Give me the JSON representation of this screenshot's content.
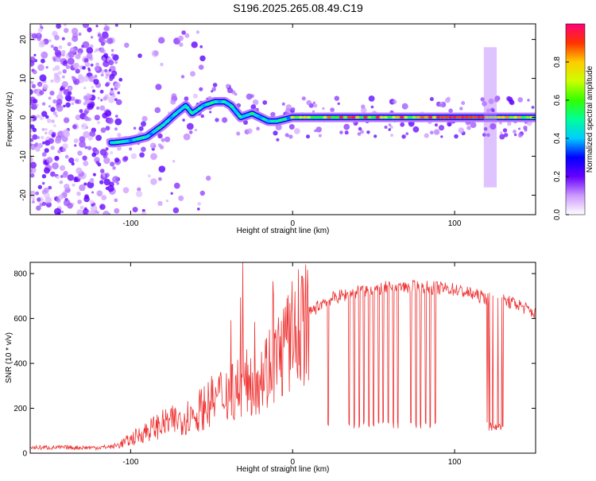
{
  "title": "S196.2025.265.08.49.C19",
  "chart_data": [
    {
      "type": "heatmap",
      "xlabel": "Height of straight line (km)",
      "ylabel": "Frequency (Hz)",
      "xlim": [
        -162,
        150
      ],
      "ylim": [
        -25,
        24
      ],
      "xticks": [
        -100,
        0,
        100
      ],
      "yticks": [
        -20,
        -10,
        0,
        10,
        20
      ],
      "ridge": {
        "x": [
          -110,
          -100,
          -90,
          -80,
          -72,
          -66,
          -62,
          -55,
          -48,
          -42,
          -38,
          -32,
          -25,
          -20,
          -15,
          -10,
          -5,
          0,
          10,
          50,
          100,
          118,
          125,
          130,
          150
        ],
        "y": [
          -6.5,
          -6,
          -5,
          -2,
          1,
          3,
          1,
          3,
          4,
          4,
          3,
          0,
          1,
          0,
          -1,
          -1,
          -0.5,
          0,
          0,
          0,
          0,
          0,
          0,
          0,
          0
        ]
      },
      "colorbar": {
        "label": "Normalized spectral amplitude",
        "range": [
          0,
          1
        ],
        "ticks": [
          0.0,
          0.2,
          0.4,
          0.6,
          0.8
        ]
      }
    },
    {
      "type": "line",
      "xlabel": "Height of straight line (km)",
      "ylabel": "SNR (10 * v/v)",
      "xlim": [
        -162,
        150
      ],
      "ylim": [
        0,
        850
      ],
      "xticks": [
        -100,
        0,
        100
      ],
      "yticks": [
        0,
        200,
        400,
        600,
        800
      ],
      "color": "#ee3333",
      "envelope": {
        "x": [
          -162,
          -120,
          -110,
          -100,
          -90,
          -80,
          -70,
          -60,
          -50,
          -40,
          -30,
          -20,
          -10,
          0,
          10,
          20,
          30,
          40,
          60,
          80,
          100,
          110,
          120,
          130,
          140,
          150
        ],
        "y": [
          25,
          25,
          30,
          60,
          100,
          130,
          150,
          180,
          230,
          280,
          300,
          350,
          420,
          520,
          620,
          680,
          700,
          720,
          740,
          740,
          730,
          710,
          690,
          680,
          660,
          620
        ]
      },
      "dropouts_x": [
        22,
        35,
        38,
        41,
        44,
        47,
        50,
        53,
        56,
        59,
        62,
        65,
        73,
        76,
        79,
        82,
        85,
        88
      ]
    }
  ]
}
